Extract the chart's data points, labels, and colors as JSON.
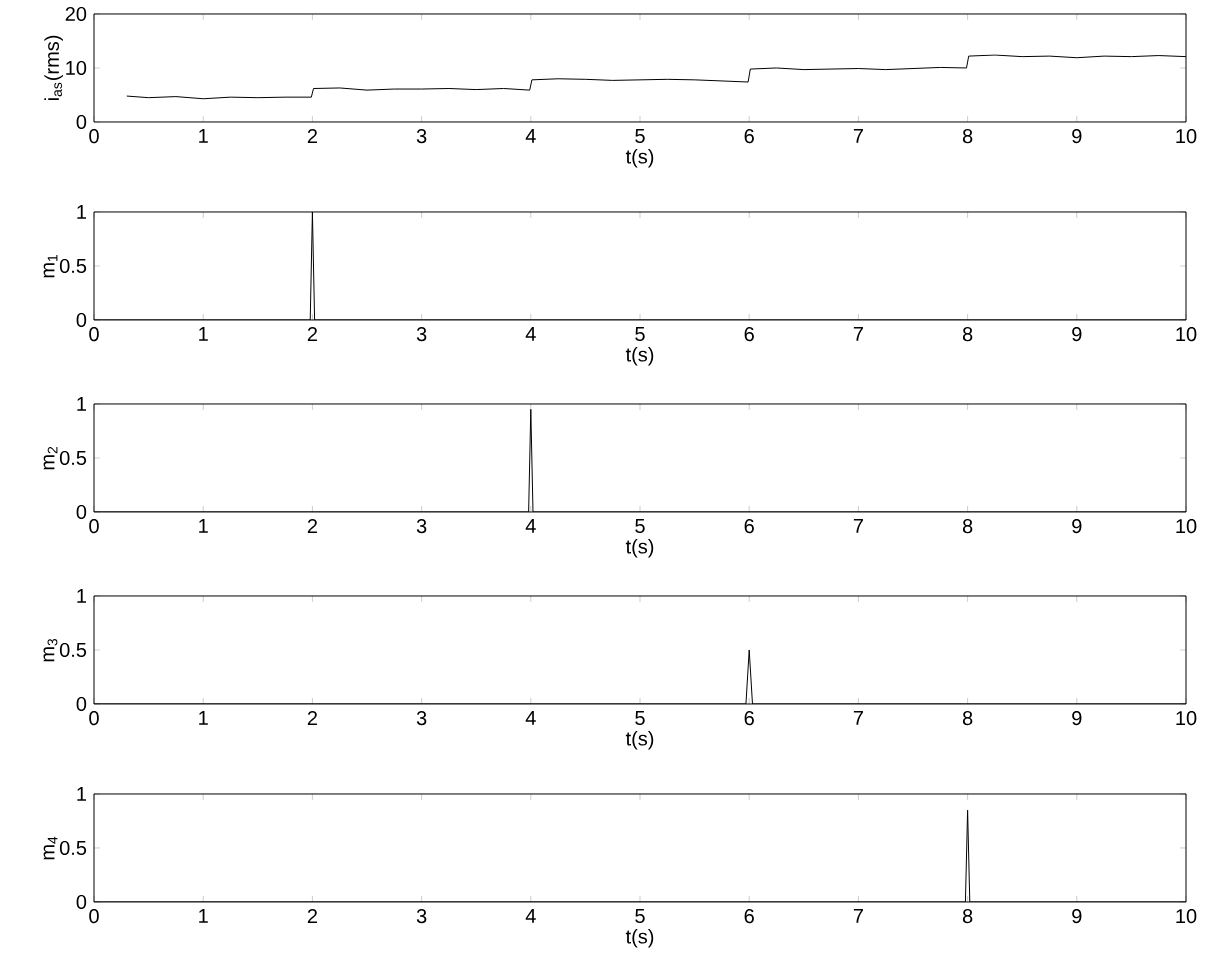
{
  "chart_data": [
    {
      "type": "line",
      "ylabel": "i$_{as}$(rms)",
      "xlabel": "t(s)",
      "xlim": [
        0,
        10
      ],
      "ylim": [
        0,
        20
      ],
      "xticks": [
        0,
        1,
        2,
        3,
        4,
        5,
        6,
        7,
        8,
        9,
        10
      ],
      "yticks": [
        0,
        10,
        20
      ],
      "x": [
        0.3,
        0.5,
        0.75,
        1,
        1.25,
        1.5,
        1.75,
        1.99,
        2.01,
        2.25,
        2.5,
        2.75,
        3,
        3.25,
        3.5,
        3.75,
        3.99,
        4.01,
        4.25,
        4.5,
        4.75,
        5,
        5.25,
        5.5,
        5.75,
        5.99,
        6.01,
        6.25,
        6.5,
        6.75,
        7,
        7.25,
        7.5,
        7.75,
        7.99,
        8.01,
        8.25,
        8.5,
        8.75,
        9,
        9.25,
        9.5,
        9.75,
        10
      ],
      "series": [
        {
          "color": "#000000",
          "values": [
            4.8,
            4.5,
            4.7,
            4.3,
            4.6,
            4.5,
            4.6,
            4.6,
            6.2,
            6.3,
            5.9,
            6.1,
            6.1,
            6.2,
            6.0,
            6.2,
            5.9,
            7.8,
            8.0,
            7.9,
            7.7,
            7.8,
            7.9,
            7.8,
            7.6,
            7.4,
            9.8,
            10.0,
            9.7,
            9.8,
            9.9,
            9.7,
            9.9,
            10.1,
            10.0,
            12.2,
            12.4,
            12.1,
            12.2,
            11.9,
            12.2,
            12.1,
            12.3,
            12.1
          ]
        }
      ]
    },
    {
      "type": "line",
      "ylabel": "m$_{1}$",
      "xlabel": "t(s)",
      "xlim": [
        0,
        10
      ],
      "ylim": [
        0,
        1
      ],
      "xticks": [
        0,
        1,
        2,
        3,
        4,
        5,
        6,
        7,
        8,
        9,
        10
      ],
      "yticks": [
        0,
        0.5,
        1
      ],
      "x": [
        0,
        1.98,
        2.0,
        2.02,
        10
      ],
      "series": [
        {
          "color": "#000000",
          "values": [
            0,
            0,
            1.0,
            0,
            0
          ]
        }
      ]
    },
    {
      "type": "line",
      "ylabel": "m$_{2}$",
      "xlabel": "t(s)",
      "xlim": [
        0,
        10
      ],
      "ylim": [
        0,
        1
      ],
      "xticks": [
        0,
        1,
        2,
        3,
        4,
        5,
        6,
        7,
        8,
        9,
        10
      ],
      "yticks": [
        0,
        0.5,
        1
      ],
      "x": [
        0,
        3.98,
        4.0,
        4.02,
        10
      ],
      "series": [
        {
          "color": "#000000",
          "values": [
            0,
            0,
            0.95,
            0,
            0
          ]
        }
      ]
    },
    {
      "type": "line",
      "ylabel": "m$_{3}$",
      "xlabel": "t(s)",
      "xlim": [
        0,
        10
      ],
      "ylim": [
        0,
        1
      ],
      "xticks": [
        0,
        1,
        2,
        3,
        4,
        5,
        6,
        7,
        8,
        9,
        10
      ],
      "yticks": [
        0,
        0.5,
        1
      ],
      "x": [
        0,
        5.97,
        6.0,
        6.03,
        10
      ],
      "series": [
        {
          "color": "#000000",
          "values": [
            0,
            0,
            0.5,
            0,
            0
          ]
        }
      ]
    },
    {
      "type": "line",
      "ylabel": "m$_{4}$",
      "xlabel": "t(s)",
      "xlim": [
        0,
        10
      ],
      "ylim": [
        0,
        1
      ],
      "xticks": [
        0,
        1,
        2,
        3,
        4,
        5,
        6,
        7,
        8,
        9,
        10
      ],
      "yticks": [
        0,
        0.5,
        1
      ],
      "x": [
        0,
        7.98,
        8.0,
        8.02,
        10
      ],
      "series": [
        {
          "color": "#000000",
          "values": [
            0,
            0,
            0.85,
            0,
            0
          ]
        }
      ]
    }
  ]
}
